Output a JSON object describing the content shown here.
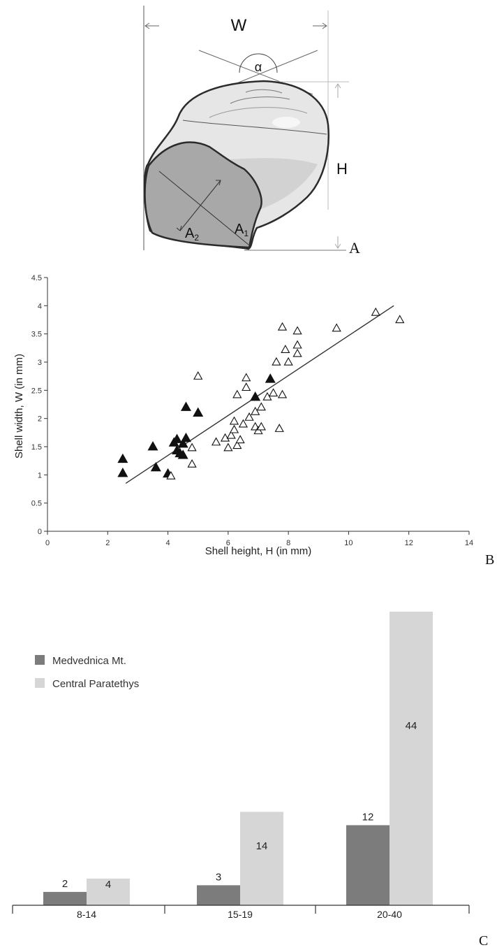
{
  "panel_letters": {
    "a": "A",
    "b": "B",
    "c": "C"
  },
  "diagram": {
    "labels": {
      "width": "W",
      "height": "H",
      "angle": "α",
      "a1_base": "A",
      "a1_sub": "1",
      "a2_base": "A",
      "a2_sub": "2"
    },
    "colors": {
      "shell_light": "#e6e6e6",
      "aperture": "#a8a8a8",
      "outline": "#2b2b2b"
    }
  },
  "chart_data": [
    {
      "type": "scatter",
      "xlabel": "Shell height, H (in mm)",
      "ylabel": "Shell width, W (in mm)",
      "xlim": [
        0,
        14
      ],
      "ylim": [
        0,
        4.5
      ],
      "xticks": [
        "0",
        "2",
        "4",
        "6",
        "8",
        "10",
        "12",
        "14"
      ],
      "yticks": [
        "0",
        "0.5",
        "1",
        "1.5",
        "2",
        "2.5",
        "3",
        "3.5",
        "4",
        "4.5"
      ],
      "grid": false,
      "series": [
        {
          "marker": "filled-triangle",
          "points": [
            [
              2.5,
              1.28
            ],
            [
              2.5,
              1.03
            ],
            [
              3.5,
              1.5
            ],
            [
              3.6,
              1.13
            ],
            [
              4.0,
              1.02
            ],
            [
              4.2,
              1.57
            ],
            [
              4.3,
              1.43
            ],
            [
              4.3,
              1.63
            ],
            [
              4.4,
              1.38
            ],
            [
              4.5,
              1.55
            ],
            [
              4.5,
              1.35
            ],
            [
              4.6,
              1.65
            ],
            [
              4.6,
              2.2
            ],
            [
              5.0,
              2.1
            ],
            [
              6.9,
              2.38
            ],
            [
              7.4,
              2.7
            ]
          ]
        },
        {
          "marker": "open-triangle",
          "points": [
            [
              4.1,
              0.98
            ],
            [
              4.8,
              1.48
            ],
            [
              4.8,
              1.19
            ],
            [
              5.0,
              2.75
            ],
            [
              5.6,
              1.58
            ],
            [
              5.9,
              1.65
            ],
            [
              6.0,
              1.48
            ],
            [
              6.1,
              1.7
            ],
            [
              6.2,
              1.8
            ],
            [
              6.2,
              1.95
            ],
            [
              6.3,
              1.52
            ],
            [
              6.3,
              2.42
            ],
            [
              6.4,
              1.62
            ],
            [
              6.5,
              1.9
            ],
            [
              6.6,
              2.55
            ],
            [
              6.6,
              2.72
            ],
            [
              6.7,
              2.02
            ],
            [
              6.9,
              2.12
            ],
            [
              6.9,
              1.85
            ],
            [
              7.0,
              1.78
            ],
            [
              7.1,
              1.85
            ],
            [
              7.1,
              2.2
            ],
            [
              7.3,
              2.38
            ],
            [
              7.5,
              2.45
            ],
            [
              7.6,
              3.0
            ],
            [
              7.7,
              1.82
            ],
            [
              7.8,
              2.42
            ],
            [
              7.8,
              3.62
            ],
            [
              7.9,
              3.22
            ],
            [
              8.0,
              3.0
            ],
            [
              8.3,
              3.55
            ],
            [
              8.3,
              3.3
            ],
            [
              8.3,
              3.15
            ],
            [
              9.6,
              3.6
            ],
            [
              10.9,
              3.88
            ],
            [
              11.7,
              3.75
            ]
          ]
        }
      ],
      "trendline": {
        "x": [
          2.6,
          11.5
        ],
        "y": [
          0.85,
          4.0
        ]
      }
    },
    {
      "type": "bar",
      "categories": [
        "8-14",
        "15-19",
        "20-40"
      ],
      "series": [
        {
          "name": "Medvednica Mt.",
          "values": [
            2,
            3,
            12
          ],
          "labels": [
            "2",
            "3",
            "12"
          ],
          "color": "#7c7c7c"
        },
        {
          "name": "Central Paratethys",
          "values": [
            4,
            14,
            44
          ],
          "labels": [
            "4",
            "14",
            "44"
          ],
          "color": "#d6d6d6"
        }
      ],
      "ylim": [
        0,
        44
      ],
      "legend": "top-left",
      "grid": false
    }
  ]
}
